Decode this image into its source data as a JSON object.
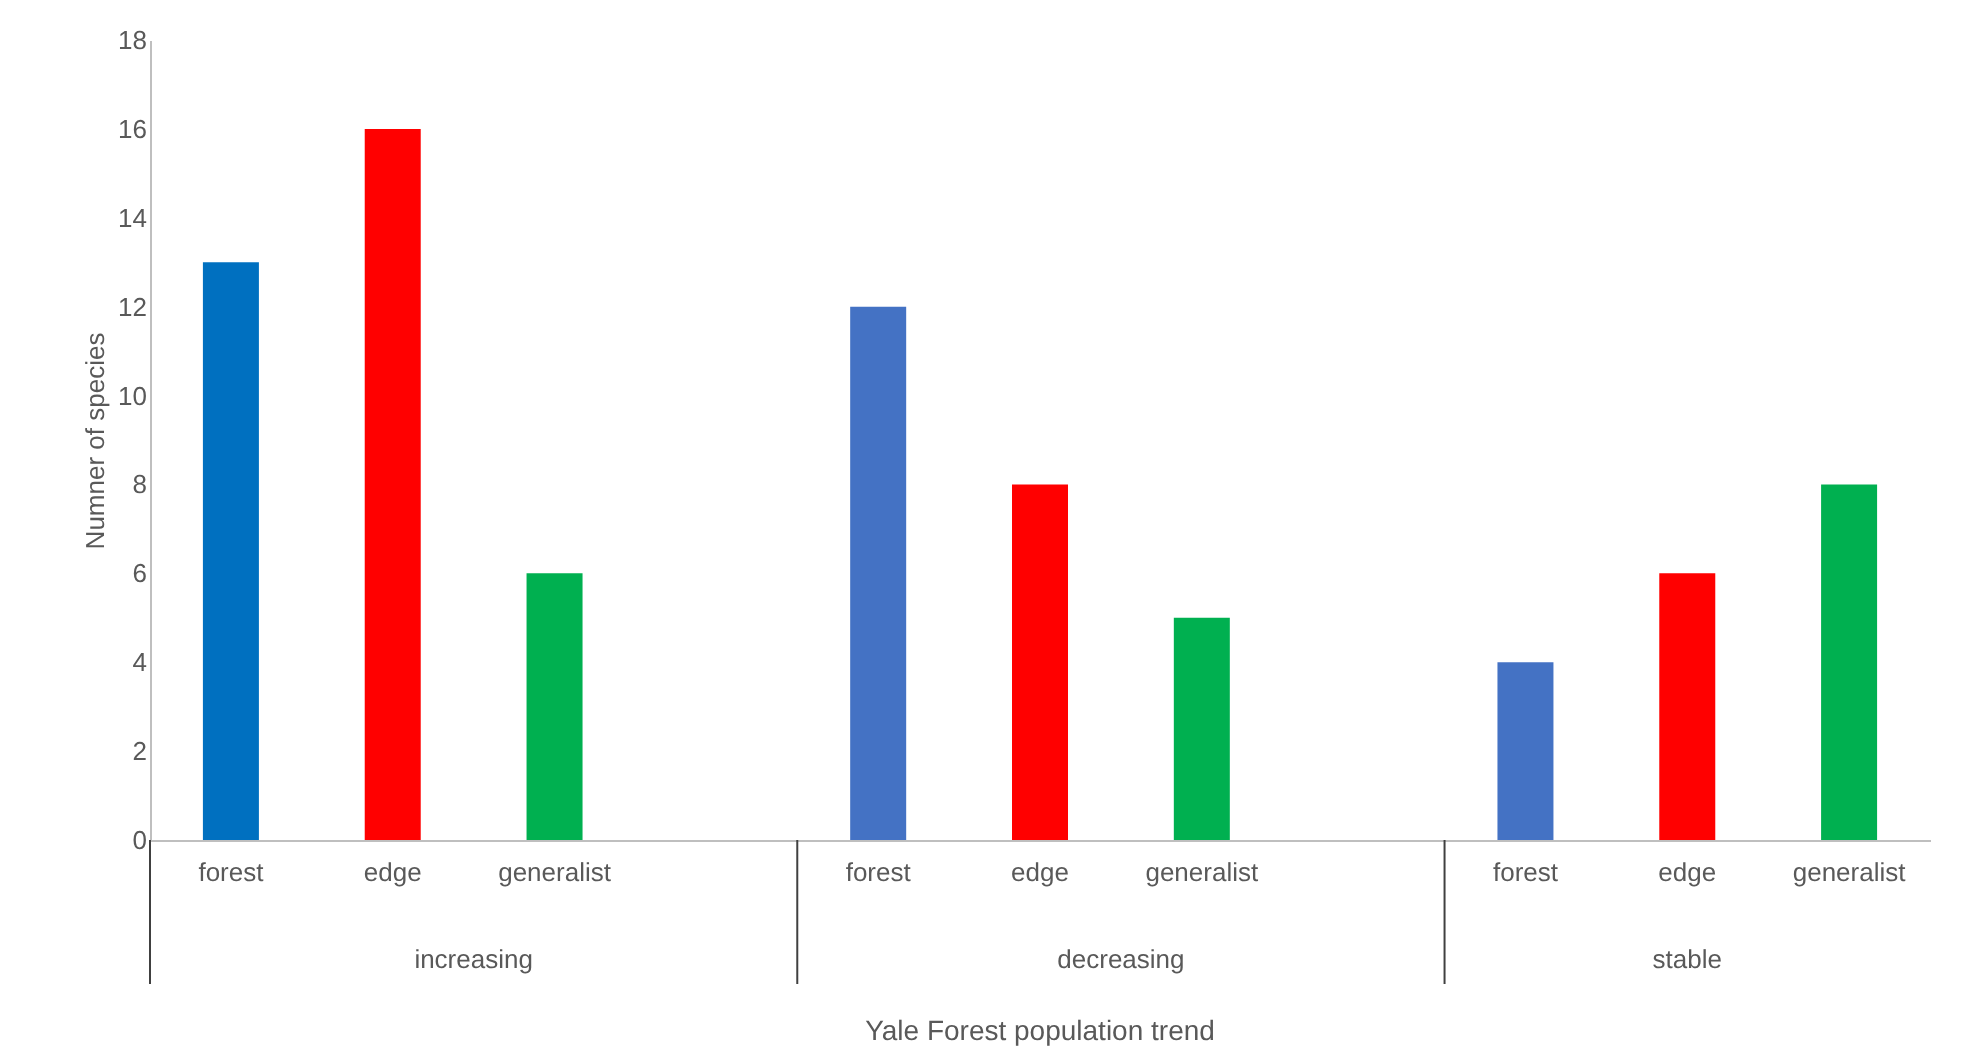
{
  "chart_data": {
    "type": "bar",
    "xlabel": "Yale Forest population trend",
    "ylabel": "Numner of species",
    "categories": [
      "forest",
      "edge",
      "generalist",
      null,
      "forest",
      "edge",
      "generalist",
      null,
      "forest",
      "edge",
      "generalist"
    ],
    "values": [
      13,
      16,
      6,
      null,
      12,
      8,
      5,
      null,
      4,
      6,
      8
    ],
    "colors": [
      "#0070c0",
      "#ff0000",
      "#00b050",
      "#ffffff",
      "#4472c4",
      "#ff0000",
      "#00b050",
      "#ffffff",
      "#4472c4",
      "#ff0000",
      "#00b050"
    ],
    "annotations": [
      "increasing",
      "decreasing",
      "stable"
    ],
    "ylim": [
      0,
      18
    ],
    "yticks": [
      0,
      2,
      4,
      6,
      8,
      10,
      12,
      14,
      16,
      18
    ],
    "grid": false
  }
}
